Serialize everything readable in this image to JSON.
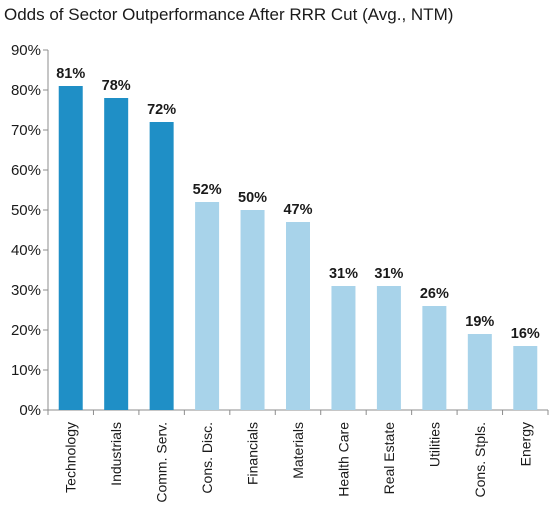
{
  "chart_data": {
    "type": "bar",
    "title": "Odds of Sector Outperformance After RRR Cut (Avg., NTM)",
    "categories": [
      "Technology",
      "Industrials",
      "Comm. Serv.",
      "Cons. Disc.",
      "Financials",
      "Materials",
      "Health Care",
      "Real Estate",
      "Utilities",
      "Cons. Stpls.",
      "Energy"
    ],
    "values": [
      81,
      78,
      72,
      52,
      50,
      47,
      31,
      31,
      26,
      19,
      16
    ],
    "value_labels": [
      "81%",
      "78%",
      "72%",
      "52%",
      "50%",
      "47%",
      "31%",
      "31%",
      "26%",
      "19%",
      "16%"
    ],
    "y_tick_labels": [
      "0%",
      "10%",
      "20%",
      "30%",
      "40%",
      "50%",
      "60%",
      "70%",
      "80%",
      "90%"
    ],
    "ylim": [
      0,
      90
    ],
    "xlabel": "",
    "ylabel": "",
    "grid": false,
    "colors": {
      "highlight": "#1f8fc6",
      "normal": "#a8d3ea",
      "axis": "#8c8c8c"
    },
    "highlight_count": 3
  }
}
